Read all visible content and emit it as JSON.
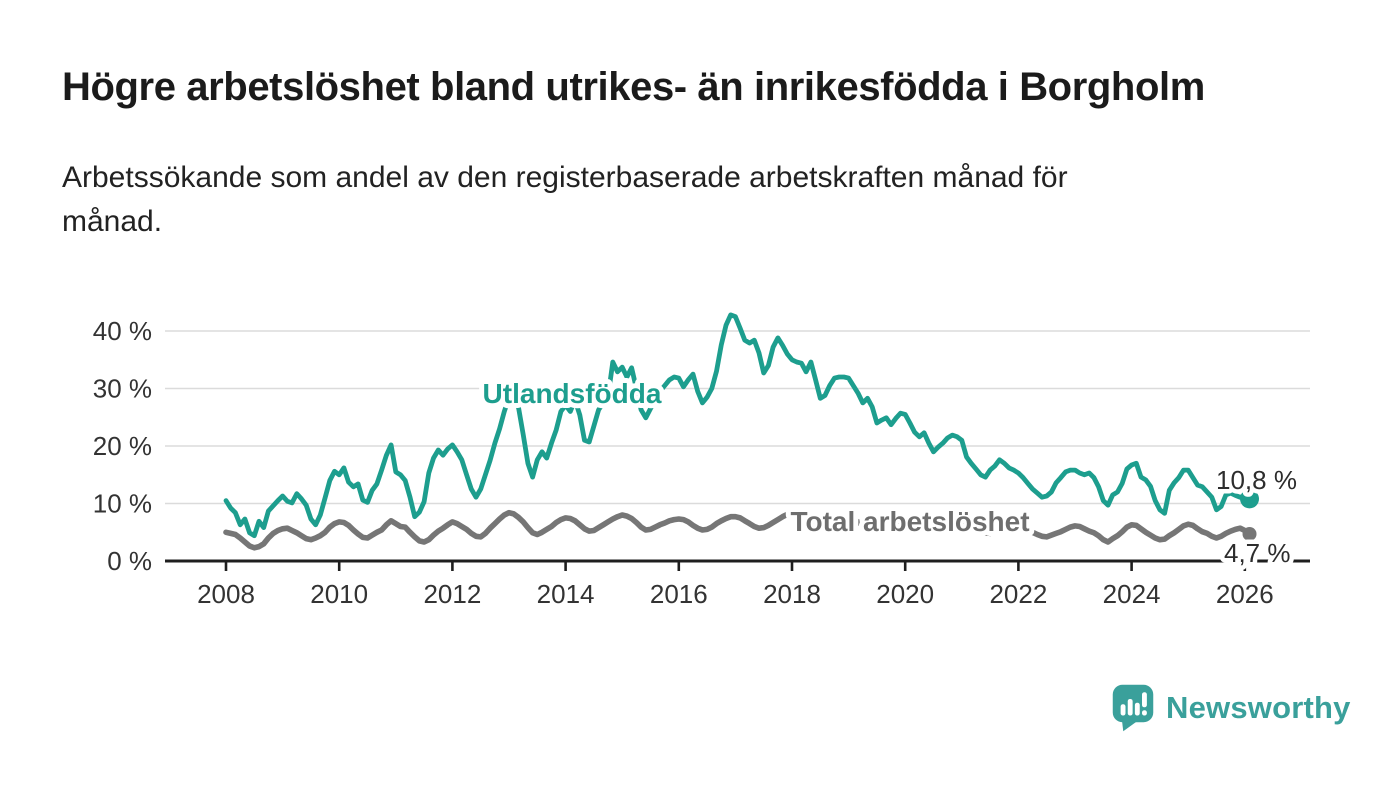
{
  "header": {
    "title": "Högre arbetslöshet bland utrikes- än inrikesfödda i Borgholm",
    "subtitle_line1": "Arbetssökande som andel av den registerbaserade arbetskraften månad för",
    "subtitle_line2": "månad."
  },
  "footer": {
    "brand": "Newsworthy"
  },
  "colors": {
    "utlandsfodda": "#1d9e8e",
    "total": "#767676",
    "total_label": "#6e6e6e",
    "grid": "#dbdbdb",
    "axis": "#1f1f1f",
    "axis_text": "#333333",
    "end_label_text": "#2d2d2d",
    "brand_teal": "#3aa09b"
  },
  "chart_data": {
    "type": "line",
    "title": "Högre arbetslöshet bland utrikes- än inrikesfödda i Borgholm",
    "xlabel": "",
    "ylabel": "",
    "unit": "%",
    "grid": true,
    "legend_position": "inline-labels",
    "frequency": "monthly",
    "start_year": 2008,
    "start_month": 1,
    "x_axis": {
      "ticks": [
        2008,
        2010,
        2012,
        2014,
        2016,
        2018,
        2020,
        2022,
        2024,
        2026
      ],
      "labels": [
        "2008",
        "2010",
        "2012",
        "2014",
        "2016",
        "2018",
        "2020",
        "2022",
        "2024",
        "2026"
      ]
    },
    "y_axis": {
      "ticks": [
        0,
        10,
        20,
        30,
        40
      ],
      "labels": [
        "0 %",
        "10 %",
        "20 %",
        "30 %",
        "40 %"
      ],
      "ylim": [
        0,
        44
      ]
    },
    "series": [
      {
        "name": "Utlandsfödda",
        "color": "#1d9e8e",
        "end_value": 10.8,
        "end_label": "10,8 %",
        "values": [
          10.5,
          9.2,
          8.4,
          6.3,
          7.3,
          4.9,
          4.4,
          6.9,
          5.8,
          8.7,
          9.6,
          10.5,
          11.3,
          10.4,
          10.1,
          11.7,
          10.8,
          9.7,
          7.3,
          6.3,
          8.0,
          11.0,
          14.0,
          15.6,
          15.0,
          16.2,
          13.7,
          12.9,
          13.4,
          10.6,
          10.2,
          12.3,
          13.4,
          15.8,
          18.4,
          20.2,
          15.5,
          15.0,
          14.0,
          11.1,
          7.7,
          8.5,
          10.3,
          15.3,
          17.9,
          19.3,
          18.4,
          19.5,
          20.2,
          19.0,
          17.6,
          15.0,
          12.5,
          11.1,
          12.5,
          15.0,
          17.5,
          20.5,
          23.0,
          26.0,
          28.4,
          27.5,
          26.8,
          22.0,
          17.0,
          14.6,
          17.6,
          19.0,
          17.9,
          20.5,
          22.8,
          26.0,
          27.1,
          26.0,
          28.0,
          25.4,
          21.0,
          20.7,
          23.5,
          26.3,
          27.5,
          28.5,
          34.6,
          32.9,
          33.7,
          32.0,
          33.6,
          30.0,
          26.3,
          24.9,
          26.5,
          28.0,
          29.5,
          30.5,
          31.5,
          32.0,
          31.8,
          30.3,
          31.5,
          32.5,
          29.5,
          27.5,
          28.5,
          30.0,
          33.0,
          37.6,
          41.0,
          42.8,
          42.5,
          40.5,
          38.4,
          37.9,
          38.4,
          36.2,
          32.7,
          34.0,
          37.2,
          38.8,
          37.5,
          36.0,
          35.0,
          34.6,
          34.4,
          32.9,
          34.6,
          31.5,
          28.3,
          28.8,
          30.5,
          31.8,
          32.0,
          32.0,
          31.8,
          30.5,
          29.2,
          27.5,
          28.3,
          26.8,
          24.0,
          24.5,
          24.9,
          23.7,
          24.8,
          25.7,
          25.5,
          24.0,
          22.4,
          21.6,
          22.3,
          20.5,
          19.0,
          19.8,
          20.5,
          21.4,
          21.9,
          21.6,
          21.0,
          18.1,
          17.0,
          16.0,
          15.0,
          14.6,
          15.8,
          16.5,
          17.6,
          17.0,
          16.2,
          15.8,
          15.3,
          14.5,
          13.5,
          12.5,
          11.8,
          11.1,
          11.3,
          12.0,
          13.6,
          14.5,
          15.5,
          15.8,
          15.8,
          15.3,
          15.0,
          15.3,
          14.5,
          12.9,
          10.5,
          9.7,
          11.5,
          12.0,
          13.5,
          16.0,
          16.7,
          17.0,
          14.6,
          14.1,
          13.0,
          10.5,
          8.9,
          8.3,
          12.3,
          13.6,
          14.5,
          15.8,
          15.8,
          14.5,
          13.2,
          12.9,
          12.0,
          11.1,
          8.9,
          9.5,
          11.5,
          11.8,
          11.4,
          11.1,
          11.3,
          10.8
        ]
      },
      {
        "name": "Total arbetslöshet",
        "color": "#767676",
        "end_value": 4.7,
        "end_label": "4,7 %",
        "values": [
          5.0,
          4.8,
          4.6,
          4.0,
          3.3,
          2.6,
          2.3,
          2.5,
          3.0,
          4.0,
          4.8,
          5.3,
          5.6,
          5.7,
          5.3,
          4.9,
          4.4,
          3.9,
          3.7,
          4.0,
          4.4,
          5.0,
          5.9,
          6.5,
          6.8,
          6.7,
          6.2,
          5.4,
          4.7,
          4.1,
          4.0,
          4.5,
          5.0,
          5.4,
          6.3,
          7.0,
          6.5,
          6.0,
          5.9,
          5.0,
          4.2,
          3.5,
          3.3,
          3.7,
          4.5,
          5.2,
          5.7,
          6.3,
          6.8,
          6.5,
          6.0,
          5.5,
          4.8,
          4.3,
          4.2,
          4.8,
          5.7,
          6.5,
          7.3,
          8.0,
          8.4,
          8.2,
          7.6,
          6.8,
          5.8,
          4.9,
          4.6,
          5.0,
          5.5,
          6.0,
          6.7,
          7.2,
          7.5,
          7.4,
          7.0,
          6.3,
          5.6,
          5.2,
          5.3,
          5.8,
          6.3,
          6.8,
          7.3,
          7.7,
          8.0,
          7.8,
          7.4,
          6.7,
          5.9,
          5.4,
          5.5,
          5.9,
          6.3,
          6.6,
          7.0,
          7.2,
          7.3,
          7.2,
          6.8,
          6.2,
          5.7,
          5.4,
          5.5,
          5.9,
          6.5,
          7.0,
          7.4,
          7.7,
          7.7,
          7.5,
          7.0,
          6.5,
          6.0,
          5.7,
          5.8,
          6.2,
          6.7,
          7.2,
          7.7,
          8.1,
          8.3,
          8.0,
          7.5,
          6.8,
          6.2,
          5.8,
          5.6,
          5.9,
          6.3,
          6.7,
          7.0,
          7.3,
          7.4,
          7.2,
          6.8,
          6.2,
          5.6,
          5.2,
          5.0,
          5.3,
          5.7,
          6.1,
          6.5,
          6.9,
          7.1,
          7.0,
          6.8,
          6.5,
          6.2,
          6.0,
          5.8,
          6.0,
          6.2,
          6.4,
          6.6,
          6.8,
          6.8,
          6.6,
          6.3,
          5.8,
          5.3,
          4.9,
          4.8,
          5.0,
          5.3,
          5.5,
          5.7,
          5.9,
          6.0,
          5.8,
          5.5,
          5.0,
          4.6,
          4.3,
          4.2,
          4.5,
          4.8,
          5.1,
          5.5,
          5.9,
          6.1,
          6.0,
          5.6,
          5.2,
          4.9,
          4.4,
          3.7,
          3.3,
          3.9,
          4.4,
          5.1,
          5.9,
          6.3,
          6.2,
          5.6,
          5.0,
          4.5,
          4.0,
          3.7,
          3.8,
          4.4,
          4.9,
          5.5,
          6.1,
          6.4,
          6.2,
          5.6,
          5.1,
          4.8,
          4.3,
          4.0,
          4.3,
          4.8,
          5.2,
          5.5,
          5.7,
          5.3,
          4.7
        ]
      }
    ]
  }
}
